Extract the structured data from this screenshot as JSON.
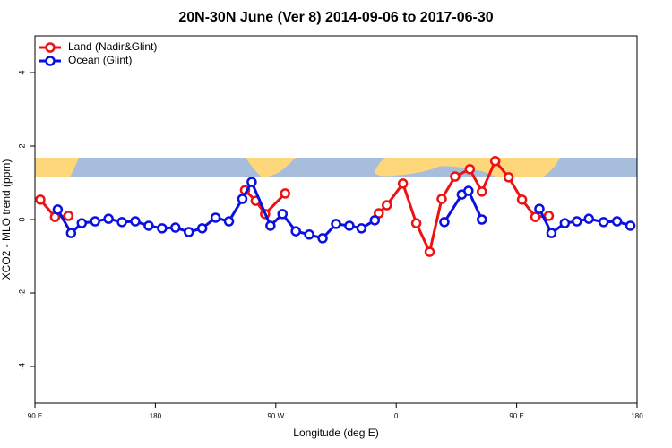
{
  "chart_data": {
    "type": "line",
    "title": "20N-30N June (Ver 8)   2014-09-06 to 2017-06-30",
    "x_label": "Longitude (deg E)",
    "y_label": "XCO2 - MLO trend (ppm)",
    "xlim": [
      90,
      540
    ],
    "xticks": [
      {
        "value": 90,
        "label": "90 E"
      },
      {
        "value": 180,
        "label": "180"
      },
      {
        "value": 270,
        "label": "90 W"
      },
      {
        "value": 360,
        "label": "0"
      },
      {
        "value": 450,
        "label": "90 E"
      },
      {
        "value": 540,
        "label": "180"
      }
    ],
    "ylim": [
      -5,
      5
    ],
    "yticks": [
      -4,
      -2,
      0,
      2,
      4
    ],
    "legend": "top-left",
    "series": [
      {
        "name": "Land (Nadir&Glint)",
        "color": "#ee1111",
        "x": [
          94,
          105,
          115,
          null,
          247,
          255,
          262,
          277,
          null,
          347,
          353,
          365,
          375,
          385,
          394,
          404,
          415,
          424,
          434,
          444,
          454,
          464,
          474
        ],
        "values": [
          0.54,
          0.07,
          0.1,
          null,
          0.8,
          0.51,
          0.15,
          0.71,
          null,
          0.17,
          0.39,
          0.98,
          -0.1,
          -0.88,
          0.56,
          1.17,
          1.37,
          0.76,
          1.59,
          1.15,
          0.54,
          0.07,
          0.1
        ]
      },
      {
        "name": "Ocean (Glint)",
        "color": "#0a10e0",
        "x": [
          107,
          117,
          125,
          135,
          145,
          155,
          165,
          175,
          185,
          195,
          205,
          215,
          225,
          235,
          245,
          252,
          266,
          275,
          285,
          295,
          305,
          315,
          325,
          334,
          344,
          null,
          396,
          409,
          414,
          424,
          null,
          467,
          476,
          486,
          495,
          504,
          515,
          525,
          535
        ],
        "values": [
          0.27,
          -0.37,
          -0.1,
          -0.05,
          0.02,
          -0.07,
          -0.05,
          -0.17,
          -0.24,
          -0.22,
          -0.34,
          -0.24,
          0.05,
          -0.05,
          0.56,
          1.02,
          -0.17,
          0.15,
          -0.32,
          -0.41,
          -0.51,
          -0.12,
          -0.17,
          -0.24,
          -0.02,
          null,
          -0.07,
          0.68,
          0.78,
          0.0,
          null,
          0.29,
          -0.37,
          -0.1,
          -0.05,
          0.02,
          -0.07,
          -0.05,
          -0.17
        ]
      }
    ]
  }
}
